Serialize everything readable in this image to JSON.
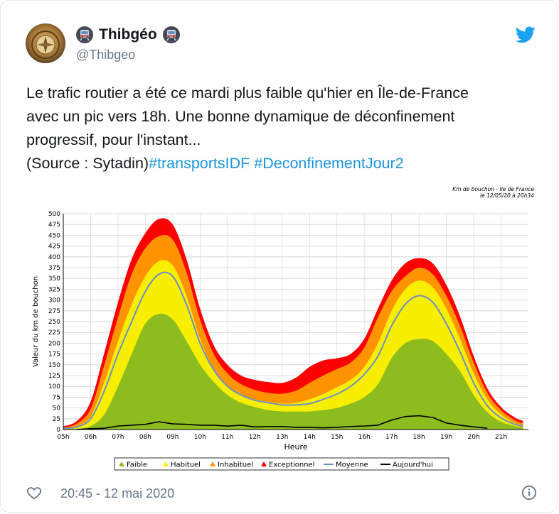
{
  "user": {
    "display_name": "Thibgéo",
    "handle": "@Thibgeo",
    "avatar_icon": "compass-icon",
    "emoji_icon": "metro-train-icon"
  },
  "tweet": {
    "lines": [
      "Le trafic routier a été ce mardi plus faible qu'hier en Île-de-France",
      "avec un pic vers 18h. Une bonne dynamique de déconfinement",
      "progressif, pour l'instant..."
    ],
    "source_text": "(Source : Sytadin)",
    "hashtags": [
      "#transportsIDF",
      "#DeconfinementJour2"
    ],
    "timestamp": "20:45 - 12 mai 2020"
  },
  "colors": {
    "faible": "#8cbc1e",
    "habituel": "#f7ee00",
    "inhabituel": "#ff9400",
    "exceptionnel": "#ff0000",
    "moyenne": "#6f8ec6",
    "aujourdhui": "#000000",
    "hashtag": "#1b95e0",
    "twitter_blue": "#1da1f2"
  },
  "chart_data": {
    "type": "area",
    "header_lines": [
      "Km de bouchon - Ile de France",
      "le 12/05/20 à 20h34"
    ],
    "xlabel": "Heure",
    "ylabel": "Valeur du  km de bouchon",
    "ylim": [
      0,
      500
    ],
    "ytick_step": 25,
    "xlim": [
      5,
      22
    ],
    "x_tick_labels": [
      "05h",
      "06h",
      "07h",
      "08h",
      "09h",
      "10h",
      "11h",
      "12h",
      "13h",
      "14h",
      "15h",
      "16h",
      "17h",
      "18h",
      "19h",
      "20h",
      "21h"
    ],
    "x_tick_values": [
      5,
      6,
      7,
      8,
      9,
      10,
      11,
      12,
      13,
      14,
      15,
      16,
      17,
      18,
      19,
      20,
      21
    ],
    "grid": true,
    "legend_position": "bottom",
    "legend": [
      "Faible",
      "Habituel",
      "Inhabituel",
      "Exceptionnel",
      "Moyenne",
      "Aujourd'hui"
    ],
    "x": [
      5,
      5.5,
      6,
      6.5,
      7,
      7.5,
      8,
      8.5,
      9,
      9.5,
      10,
      10.5,
      11,
      11.5,
      12,
      12.5,
      13,
      13.5,
      14,
      14.5,
      15,
      15.5,
      16,
      16.5,
      17,
      17.5,
      18,
      18.5,
      19,
      19.5,
      20,
      20.5,
      21,
      21.5,
      21.8
    ],
    "series": [
      {
        "name": "Faible",
        "values": [
          0,
          2,
          8,
          35,
          100,
          175,
          245,
          268,
          255,
          205,
          150,
          110,
          80,
          62,
          52,
          45,
          42,
          42,
          42,
          45,
          50,
          60,
          75,
          105,
          165,
          200,
          210,
          205,
          175,
          135,
          80,
          40,
          18,
          8,
          5
        ]
      },
      {
        "name": "Habituel",
        "values": [
          2,
          8,
          30,
          110,
          205,
          290,
          355,
          390,
          380,
          310,
          210,
          140,
          100,
          80,
          70,
          64,
          60,
          62,
          70,
          82,
          98,
          115,
          145,
          200,
          275,
          325,
          345,
          330,
          280,
          210,
          130,
          70,
          35,
          15,
          10
        ]
      },
      {
        "name": "Inhabituel",
        "values": [
          4,
          14,
          48,
          150,
          260,
          360,
          420,
          448,
          440,
          365,
          255,
          175,
          130,
          105,
          92,
          85,
          83,
          90,
          108,
          125,
          140,
          155,
          190,
          260,
          320,
          355,
          375,
          360,
          310,
          240,
          155,
          85,
          45,
          22,
          15
        ]
      },
      {
        "name": "Exceptionnel",
        "values": [
          7,
          20,
          65,
          178,
          295,
          395,
          455,
          488,
          475,
          395,
          280,
          195,
          150,
          125,
          115,
          110,
          108,
          120,
          145,
          160,
          165,
          175,
          210,
          280,
          345,
          385,
          397,
          385,
          335,
          262,
          170,
          95,
          52,
          28,
          20
        ]
      },
      {
        "name": "Moyenne",
        "values": [
          2,
          6,
          25,
          90,
          175,
          250,
          320,
          360,
          355,
          290,
          200,
          138,
          100,
          80,
          68,
          62,
          57,
          57,
          60,
          70,
          82,
          100,
          128,
          170,
          240,
          290,
          310,
          295,
          245,
          180,
          108,
          55,
          27,
          12,
          8
        ]
      },
      {
        "name": "Aujourd'hui",
        "values": [
          null,
          0,
          2,
          3,
          8,
          10,
          12,
          18,
          13,
          12,
          10,
          10,
          8,
          10,
          6,
          7,
          7,
          5,
          5,
          4,
          5,
          7,
          8,
          10,
          22,
          30,
          32,
          28,
          15,
          10,
          6,
          3,
          null,
          null,
          null
        ]
      }
    ]
  }
}
